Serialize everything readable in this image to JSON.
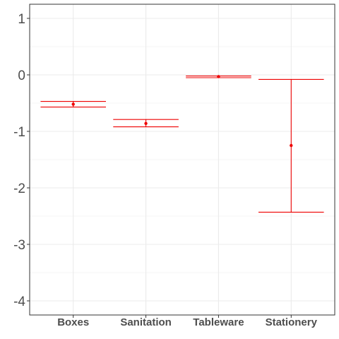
{
  "chart_data": {
    "type": "errorbar",
    "title": "",
    "xlabel": "",
    "ylabel": "",
    "categories": [
      "Boxes",
      "Sanitation",
      "Tableware",
      "Stationery"
    ],
    "series": [
      {
        "points": [
          {
            "category": "Boxes",
            "estimate": -0.52,
            "lower": -0.57,
            "upper": -0.47
          },
          {
            "category": "Sanitation",
            "estimate": -0.86,
            "lower": -0.92,
            "upper": -0.79
          },
          {
            "category": "Tableware",
            "estimate": -0.03,
            "lower": -0.05,
            "upper": -0.02
          },
          {
            "category": "Stationery",
            "estimate": -1.25,
            "lower": -2.43,
            "upper": -0.08
          }
        ]
      }
    ],
    "ylim": [
      -4.25,
      1.25
    ],
    "yticks": [
      1,
      0,
      -1,
      -2,
      -3,
      -4
    ],
    "grid": true,
    "colors": {
      "series": "#ee0000",
      "grid": "#ebebeb",
      "axis": "#333333",
      "tick_text": "#4d4d4d"
    }
  }
}
